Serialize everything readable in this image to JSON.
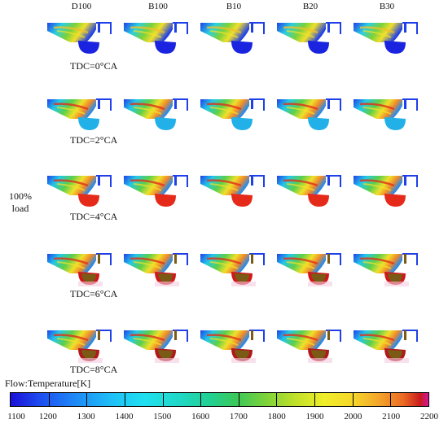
{
  "columns": [
    "D100",
    "B100",
    "B10",
    "B20",
    "B30"
  ],
  "rows": [
    "TDC=0°CA",
    "TDC=2°CA",
    "TDC=4°CA",
    "TDC=6°CA",
    "TDC=8°CA"
  ],
  "side_label": {
    "line1": "100%",
    "line2": "load"
  },
  "legend": {
    "title": "Flow:Temperature[K]",
    "ticks": [
      "1100",
      "1200",
      "1300",
      "1400",
      "1500",
      "1600",
      "1700",
      "1800",
      "1900",
      "2000",
      "2100",
      "2200"
    ],
    "min": 1100,
    "max": 2200
  }
}
